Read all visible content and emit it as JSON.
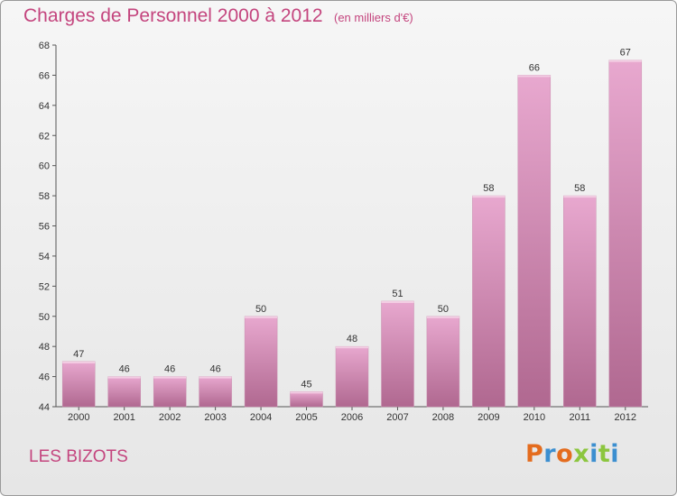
{
  "header": {
    "title": "Charges de Personnel 2000 à 2012",
    "subtitle": "(en milliers d'€)"
  },
  "footer": {
    "commune": "LES BIZOTS",
    "logo": "Proxiti"
  },
  "colors": {
    "bar_top": "#e8a8cf",
    "bar_bottom": "#b06890",
    "title": "#c4457e",
    "logo_letters": [
      "#e46c1e",
      "#3c8fd0",
      "#e46c1e",
      "#8cc63f",
      "#3c8fd0",
      "#8cc63f",
      "#3c8fd0"
    ]
  },
  "chart_data": {
    "type": "bar",
    "title": "Charges de Personnel 2000 à 2012",
    "subtitle": "(en milliers d'€)",
    "categories": [
      "2000",
      "2001",
      "2002",
      "2003",
      "2004",
      "2005",
      "2006",
      "2007",
      "2008",
      "2009",
      "2010",
      "2011",
      "2012"
    ],
    "values": [
      47,
      46,
      46,
      46,
      50,
      45,
      48,
      51,
      50,
      58,
      66,
      58,
      67
    ],
    "ylim": [
      44,
      68
    ],
    "yticks": [
      44,
      46,
      48,
      50,
      52,
      54,
      56,
      58,
      60,
      62,
      64,
      66,
      68
    ],
    "xlabel": "",
    "ylabel": "",
    "grid": false,
    "data_labels": true
  }
}
